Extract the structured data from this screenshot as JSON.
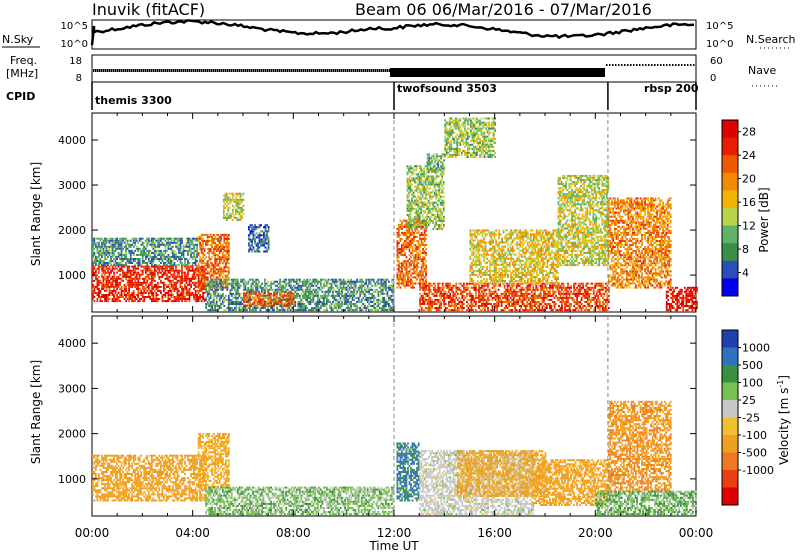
{
  "header": {
    "station": "Inuvik (fitACF)",
    "beam_date": "Beam 06  06/Mar/2016 - 07/Mar/2016"
  },
  "labels": {
    "nsky": "N.Sky",
    "nsearch": "N.Search",
    "freq": "Freq.",
    "mhz": "[MHz]",
    "nave": "Nave",
    "cpid": "CPID",
    "slant_range": "Slant Range [km]",
    "power_label": "Power [dB]",
    "velocity_label": "Velocity [m s",
    "time_label": "Time UT"
  },
  "noise_axis": {
    "left": [
      "10^5",
      "10^0"
    ],
    "right": [
      "10^5",
      "10^0"
    ]
  },
  "freq_axis": {
    "left": [
      "18",
      "8"
    ],
    "right": [
      "60",
      "0"
    ]
  },
  "cpid_segments": [
    {
      "name": "themis 3300",
      "start": 0.0,
      "end": 12.0
    },
    {
      "name": "twofsound 3503",
      "start": 12.0,
      "end": 20.5
    },
    {
      "name": "rbsp 200",
      "start": 20.5,
      "end": 24.0
    }
  ],
  "colors": {
    "power": [
      "#0000ee",
      "#2b4fb4",
      "#3c8f4a",
      "#5fb26a",
      "#b8d44a",
      "#f0b400",
      "#f08a00",
      "#f05800",
      "#e81e00",
      "#e00000"
    ],
    "velocity": [
      "#2040b0",
      "#3070c0",
      "#3a8f40",
      "#78c050",
      "#c8c8c8",
      "#f0c030",
      "#f0a020",
      "#f07820",
      "#e84010",
      "#e00000"
    ],
    "noise_trace": "#000000",
    "scan_marker": "#888888"
  },
  "chart_data": [
    {
      "type": "heatmap",
      "name": "Power",
      "xlabel": "Time UT",
      "ylabel": "Slant Range [km]",
      "xlim": [
        0,
        24
      ],
      "ylim": [
        180,
        4600
      ],
      "x_ticks": [
        "00:00",
        "04:00",
        "08:00",
        "12:00",
        "16:00",
        "20:00",
        "00:00"
      ],
      "y_ticks": [
        1000,
        2000,
        3000,
        4000
      ],
      "colorbar": {
        "label": "Power [dB]",
        "ticks": [
          4,
          8,
          12,
          16,
          20,
          24,
          28
        ],
        "range": [
          0,
          30
        ]
      },
      "blobs": [
        {
          "t0": 0.0,
          "t1": 4.5,
          "r0": 400,
          "r1": 1200,
          "value": 26
        },
        {
          "t0": 0.0,
          "t1": 4.2,
          "r0": 1200,
          "r1": 1800,
          "value": 8
        },
        {
          "t0": 4.2,
          "t1": 5.4,
          "r0": 700,
          "r1": 1900,
          "value": 22
        },
        {
          "t0": 5.2,
          "t1": 6.0,
          "r0": 2200,
          "r1": 2800,
          "value": 14
        },
        {
          "t0": 6.2,
          "t1": 7.0,
          "r0": 1500,
          "r1": 2100,
          "value": 6
        },
        {
          "t0": 4.5,
          "t1": 12.0,
          "r0": 200,
          "r1": 900,
          "value": 8
        },
        {
          "t0": 6.0,
          "t1": 8.0,
          "r0": 300,
          "r1": 600,
          "value": 22
        },
        {
          "t0": 12.1,
          "t1": 13.3,
          "r0": 700,
          "r1": 2200,
          "value": 22
        },
        {
          "t0": 12.5,
          "t1": 14.0,
          "r0": 2000,
          "r1": 3400,
          "value": 12
        },
        {
          "t0": 13.3,
          "t1": 14.0,
          "r0": 3300,
          "r1": 3700,
          "value": 10
        },
        {
          "t0": 14.0,
          "t1": 16.0,
          "r0": 3600,
          "r1": 4500,
          "value": 12
        },
        {
          "t0": 13.0,
          "t1": 20.5,
          "r0": 200,
          "r1": 800,
          "value": 24
        },
        {
          "t0": 15.0,
          "t1": 18.5,
          "r0": 800,
          "r1": 2000,
          "value": 16
        },
        {
          "t0": 18.5,
          "t1": 20.5,
          "r0": 1200,
          "r1": 3200,
          "value": 14
        },
        {
          "t0": 20.5,
          "t1": 23.0,
          "r0": 700,
          "r1": 2700,
          "value": 20
        },
        {
          "t0": 22.8,
          "t1": 24.0,
          "r0": 200,
          "r1": 700,
          "value": 28
        }
      ]
    },
    {
      "type": "heatmap",
      "name": "Velocity",
      "xlabel": "Time UT",
      "ylabel": "Slant Range [km]",
      "xlim": [
        0,
        24
      ],
      "ylim": [
        180,
        4600
      ],
      "x_ticks": [
        "00:00",
        "04:00",
        "08:00",
        "12:00",
        "16:00",
        "20:00",
        "00:00"
      ],
      "y_ticks": [
        1000,
        2000,
        3000,
        4000
      ],
      "colorbar": {
        "label": "Velocity [m s-1]",
        "ticks": [
          "1000",
          "500",
          "100",
          "25",
          "-25",
          "-100",
          "-500",
          "-1000"
        ]
      },
      "blobs": [
        {
          "t0": 0.0,
          "t1": 4.5,
          "r0": 500,
          "r1": 1500,
          "value": -300
        },
        {
          "t0": 4.2,
          "t1": 5.4,
          "r0": 800,
          "r1": 2000,
          "value": -150
        },
        {
          "t0": 4.5,
          "t1": 12.0,
          "r0": 200,
          "r1": 800,
          "value": 60
        },
        {
          "t0": 12.1,
          "t1": 13.0,
          "r0": 500,
          "r1": 1800,
          "value": 600
        },
        {
          "t0": 13.0,
          "t1": 17.5,
          "r0": 200,
          "r1": 1600,
          "value": 0
        },
        {
          "t0": 14.5,
          "t1": 18.0,
          "r0": 600,
          "r1": 1600,
          "value": -200
        },
        {
          "t0": 17.5,
          "t1": 20.5,
          "r0": 400,
          "r1": 1400,
          "value": -250
        },
        {
          "t0": 20.5,
          "t1": 23.0,
          "r0": 700,
          "r1": 2700,
          "value": -400
        },
        {
          "t0": 20.0,
          "t1": 24.0,
          "r0": 200,
          "r1": 700,
          "value": 80
        }
      ]
    }
  ]
}
